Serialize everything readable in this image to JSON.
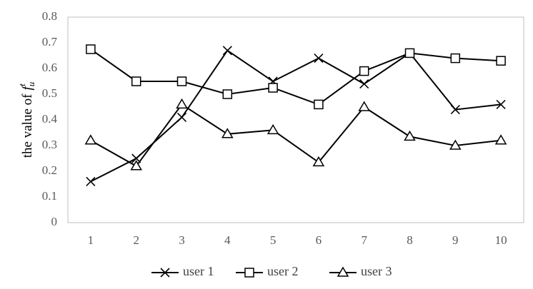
{
  "chart_data": {
    "type": "line",
    "ylabel": {
      "text": "the value of",
      "symbol": "f",
      "subscript": "u",
      "superscript": "t"
    },
    "categories": [
      "1",
      "2",
      "3",
      "4",
      "5",
      "6",
      "7",
      "8",
      "9",
      "10"
    ],
    "series": [
      {
        "name": "user 1",
        "color": "#000000",
        "marker": "x",
        "values": [
          0.16,
          0.25,
          0.41,
          0.67,
          0.55,
          0.64,
          0.54,
          0.66,
          0.44,
          0.46
        ]
      },
      {
        "name": "user 2",
        "color": "#000000",
        "marker": "square",
        "values": [
          0.675,
          0.55,
          0.55,
          0.5,
          0.525,
          0.46,
          0.59,
          0.66,
          0.64,
          0.63
        ]
      },
      {
        "name": "user 3",
        "color": "#000000",
        "marker": "triangle",
        "values": [
          0.32,
          0.22,
          0.46,
          0.345,
          0.36,
          0.235,
          0.45,
          0.335,
          0.3,
          0.32
        ]
      }
    ],
    "ylim": [
      0,
      0.8
    ],
    "yticks": [
      0,
      0.1,
      0.2,
      0.3,
      0.4,
      0.5,
      0.6,
      0.7,
      0.8
    ],
    "grid": false,
    "legend": "bottom"
  }
}
